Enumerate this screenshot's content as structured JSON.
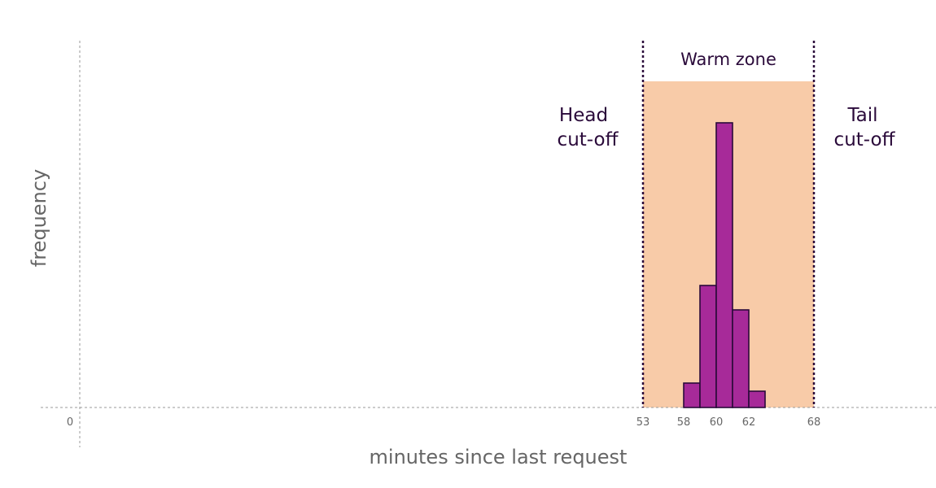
{
  "chart_data": {
    "type": "bar",
    "title": "",
    "xlabel": "minutes since last request",
    "ylabel": "frequency",
    "x_ticks": [
      0,
      53,
      58,
      60,
      62,
      68
    ],
    "bins": [
      {
        "start": 58,
        "end": 59,
        "value": 1.5
      },
      {
        "start": 59,
        "end": 60,
        "value": 7.5
      },
      {
        "start": 60,
        "end": 61,
        "value": 17.5
      },
      {
        "start": 61,
        "end": 62,
        "value": 6.0
      },
      {
        "start": 62,
        "end": 63,
        "value": 1.0
      }
    ],
    "ylim": [
      0,
      20
    ],
    "zone": {
      "label": "Warm zone",
      "start": 53,
      "end": 68
    },
    "cutoffs": [
      {
        "label_line1": "Head",
        "label_line2": "cut-off",
        "x": 53,
        "side": "left"
      },
      {
        "label_line1": "Tail",
        "label_line2": "cut-off",
        "x": 68,
        "side": "right"
      }
    ],
    "colors": {
      "bar_fill": "#a72a99",
      "bar_stroke": "#2a0a3a",
      "zone_fill": "#f8cba8",
      "cutoff_line": "#2a0a3a",
      "axis": "#999999"
    },
    "grid": false
  }
}
